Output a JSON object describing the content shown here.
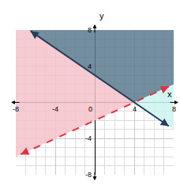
{
  "chart_data": {
    "type": "line",
    "x_label": "x",
    "y_label": "y",
    "xlim": [
      -8,
      8
    ],
    "ylim": [
      -8,
      8
    ],
    "xticks": [
      -8,
      -4,
      0,
      4,
      8
    ],
    "yticks": [
      -8,
      -4,
      4,
      8
    ],
    "grid": true,
    "regions": [
      {
        "color": "#f4c2ca",
        "x": [
          -8,
          4,
          -6.67,
          -8
        ],
        "values": [
          -6,
          0,
          8,
          8
        ]
      },
      {
        "color": "#5a7a8d",
        "x": [
          -6.67,
          4,
          8,
          8
        ],
        "values": [
          8,
          0,
          2,
          8
        ]
      },
      {
        "color": "#cdf4f1",
        "x": [
          4,
          8,
          8
        ],
        "values": [
          0,
          -3,
          2
        ]
      }
    ],
    "series": [
      {
        "color": "#1f3f5f",
        "line_style": "solid",
        "marker": "arrow",
        "x": [
          -6.5,
          7.5
        ],
        "values": [
          7.875,
          -2.625
        ]
      },
      {
        "color": "#e0323c",
        "line_style": "dashed",
        "marker": "arrow",
        "x": [
          -7.5,
          7.5
        ],
        "values": [
          -5.75,
          1.75
        ]
      }
    ]
  }
}
